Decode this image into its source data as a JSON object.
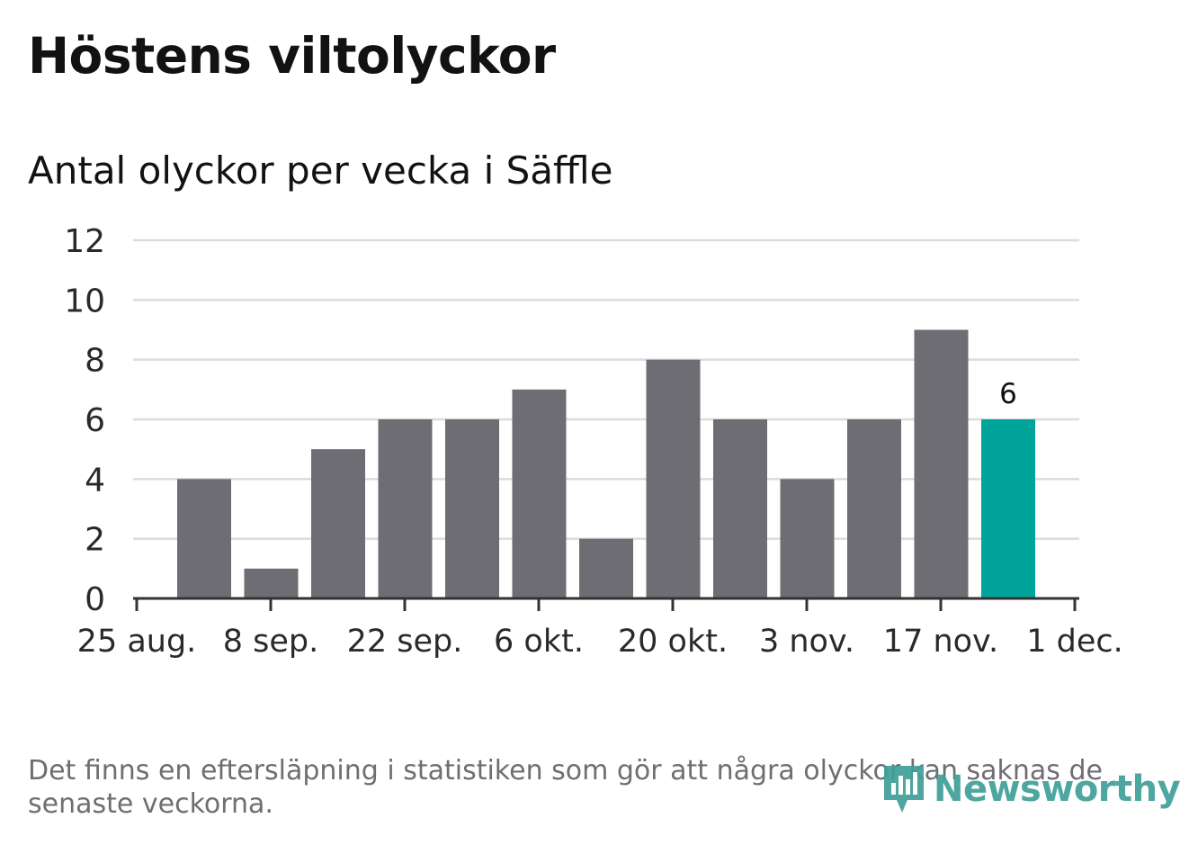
{
  "title": "Höstens viltolyckor",
  "subtitle": "Antal olyckor per vecka i Säffle",
  "footnote": "Det finns en eftersläpning i statistiken som gör att några olyckor kan saknas de senaste veckorna.",
  "logo": {
    "text": "Newsworthy",
    "icon": "newsworthy-bar-chart-icon",
    "color": "#3f9f98"
  },
  "chart_data": {
    "type": "bar",
    "title": "Höstens viltolyckor",
    "subtitle": "Antal olyckor per vecka i Säffle",
    "xlabel": "",
    "ylabel": "",
    "ylim": [
      0,
      12
    ],
    "y_ticks": [
      0,
      2,
      4,
      6,
      8,
      10,
      12
    ],
    "x_ticks": [
      "25 aug.",
      "8 sep.",
      "22 sep.",
      "6 okt.",
      "20 okt.",
      "3 nov.",
      "17 nov.",
      "1 dec."
    ],
    "grid": true,
    "bar_color": "#6e6d73",
    "highlight_color": "#00a49a",
    "series": [
      {
        "name": "Antal olyckor",
        "values": [
          4,
          1,
          5,
          6,
          6,
          7,
          2,
          8,
          6,
          4,
          6,
          9,
          6
        ]
      }
    ],
    "highlight_index": 12,
    "annotations": [
      {
        "index": 12,
        "text": "6"
      }
    ]
  }
}
